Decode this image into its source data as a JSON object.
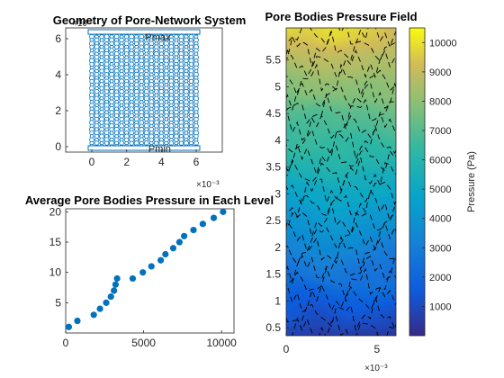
{
  "chart_data": [
    {
      "type": "scatter",
      "title": "Geometry of Pore-Network System",
      "xlabel": "",
      "ylabel": "",
      "x_exponent_label": "×10⁻³",
      "y_exponent_label": "×10⁻³",
      "xlim": [
        -1.5,
        7.5
      ],
      "ylim": [
        -0.3,
        6.6
      ],
      "x_ticks": [
        "0",
        "2",
        "4",
        "6"
      ],
      "y_ticks": [
        "0",
        "2",
        "4",
        "6"
      ],
      "x_tick_values": [
        0,
        2,
        4,
        6
      ],
      "y_tick_values": [
        0,
        2,
        4,
        6
      ],
      "grid": false,
      "color": "#0072bd",
      "network": {
        "x_range": [
          0,
          6
        ],
        "y_range": [
          0,
          6.3
        ],
        "columns": 22,
        "rows": 34
      },
      "annotations": [
        {
          "text": "Pmax",
          "x": 3.8,
          "y": 6.3
        },
        {
          "text": "Pmin",
          "x": 3.9,
          "y": -0.1
        }
      ]
    },
    {
      "type": "scatter",
      "title": "Average Pore Bodies Pressure in Each Level",
      "xlabel": "",
      "ylabel": "",
      "xlim": [
        0,
        10800
      ],
      "ylim": [
        0,
        20.5
      ],
      "x_ticks": [
        "0",
        "5000",
        "10000"
      ],
      "y_ticks": [
        "5",
        "10",
        "15",
        "20"
      ],
      "x_tick_values": [
        0,
        5000,
        10000
      ],
      "y_tick_values": [
        5,
        10,
        15,
        20
      ],
      "grid": false,
      "color": "#0072bd",
      "x": [
        200,
        750,
        1800,
        2200,
        2600,
        2900,
        3100,
        3200,
        3300,
        4300,
        4950,
        5500,
        6100,
        6400,
        6900,
        7300,
        7600,
        8200,
        8800,
        9500,
        10100
      ],
      "y": [
        1,
        2,
        3,
        4,
        5,
        6,
        7,
        8,
        9,
        9,
        10,
        11,
        12,
        13,
        14,
        15,
        16,
        17,
        18,
        19,
        20
      ]
    },
    {
      "type": "heatmap",
      "title": "Pore Bodies Pressure Field",
      "xlabel": "",
      "ylabel": "",
      "x_exponent_label": "×10⁻³",
      "xlim": [
        0,
        6.05
      ],
      "ylim": [
        0.35,
        6.1
      ],
      "x_ticks": [
        "0",
        "5"
      ],
      "y_ticks": [
        "0.5",
        "1",
        "1.5",
        "2",
        "2.5",
        "3",
        "3.5",
        "4",
        "4.5",
        "5",
        "5.5"
      ],
      "x_tick_values": [
        0,
        5
      ],
      "y_tick_values": [
        0.5,
        1,
        1.5,
        2,
        2.5,
        3,
        3.5,
        4,
        4.5,
        5,
        5.5
      ],
      "contour_style": "dashed black",
      "colorbar": {
        "label": "Pressure (Pa)",
        "ticks": [
          "1000",
          "2000",
          "3000",
          "4000",
          "5000",
          "6000",
          "7000",
          "8000",
          "9000",
          "10000"
        ],
        "tick_values": [
          1000,
          2000,
          3000,
          4000,
          5000,
          6000,
          7000,
          8000,
          9000,
          10000
        ],
        "range": [
          0,
          10500
        ]
      }
    }
  ]
}
